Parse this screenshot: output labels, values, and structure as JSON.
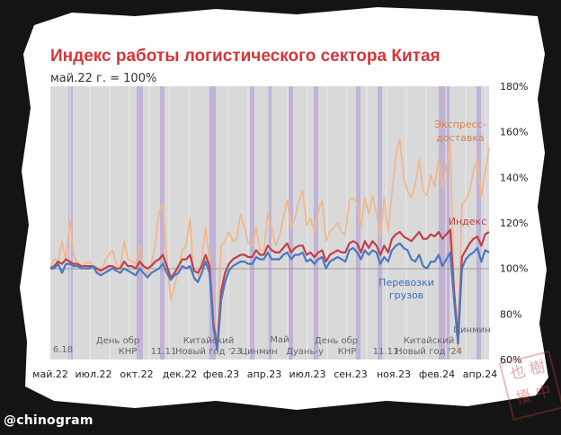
{
  "chart_data": {
    "type": "line",
    "title": "Индекс работы логистического сектора Китая",
    "subtitle": "май.22 г. = 100%",
    "x_ticks": [
      "май.22",
      "июл.22",
      "окт.22",
      "дек.22",
      "фев.23",
      "апр.23",
      "июл.23",
      "сен.23",
      "ноя.23",
      "фев.24",
      "апр.24"
    ],
    "y_ticks": [
      "60%",
      "80%",
      "100%",
      "120%",
      "140%",
      "160%",
      "180%"
    ],
    "ylim": [
      60,
      180
    ],
    "grid": true,
    "series": [
      {
        "name": "Экспресс-доставка",
        "label": "Экспресс-доставка",
        "color": "#f0b88e",
        "values": [
          100,
          104,
          103,
          112,
          104,
          121,
          106,
          102,
          101,
          102,
          103,
          101,
          99,
          98,
          103,
          106,
          108,
          102,
          100,
          112,
          104,
          103,
          102,
          110,
          101,
          97,
          102,
          110,
          125,
          128,
          104,
          86,
          92,
          100,
          108,
          110,
          122,
          95,
          94,
          104,
          118,
          104,
          78,
          68,
          110,
          112,
          116,
          112,
          113,
          124,
          118,
          111,
          110,
          118,
          108,
          108,
          124,
          118,
          110,
          114,
          122,
          130,
          118,
          122,
          130,
          134,
          119,
          122,
          116,
          125,
          130,
          112,
          116,
          118,
          120,
          116,
          115,
          130,
          131,
          129,
          118,
          131,
          124,
          132,
          124,
          114,
          131,
          116,
          133,
          150,
          157,
          140,
          134,
          131,
          137,
          148,
          134,
          132,
          141,
          136,
          148,
          135,
          145,
          155,
          88,
          64,
          128,
          130,
          134,
          143,
          148,
          132,
          142,
          153
        ]
      },
      {
        "name": "Индекс",
        "label": "Индекс",
        "color": "#c0404a",
        "values": [
          100,
          101,
          103,
          102,
          104,
          103,
          102,
          102,
          101,
          101,
          101,
          101,
          100,
          99,
          100,
          101,
          101,
          100,
          100,
          103,
          101,
          101,
          100,
          103,
          101,
          100,
          101,
          103,
          104,
          106,
          101,
          96,
          98,
          101,
          104,
          104,
          106,
          99,
          98,
          101,
          106,
          101,
          76,
          65,
          90,
          98,
          102,
          104,
          105,
          106,
          106,
          105,
          105,
          108,
          106,
          106,
          110,
          108,
          107,
          107,
          109,
          111,
          107,
          109,
          110,
          110,
          106,
          107,
          105,
          107,
          108,
          103,
          106,
          107,
          108,
          107,
          107,
          111,
          112,
          111,
          107,
          112,
          109,
          112,
          110,
          106,
          110,
          107,
          113,
          115,
          116,
          114,
          113,
          112,
          114,
          116,
          113,
          113,
          115,
          114,
          116,
          113,
          115,
          117,
          90,
          69,
          105,
          108,
          111,
          113,
          114,
          110,
          115,
          116
        ]
      },
      {
        "name": "Перевозки грузов",
        "label": "Перевозки грузов",
        "color": "#4a78c2",
        "values": [
          100,
          100,
          102,
          98,
          102,
          102,
          101,
          101,
          100,
          100,
          100,
          101,
          98,
          97,
          98,
          99,
          100,
          99,
          98,
          100,
          99,
          98,
          97,
          100,
          98,
          96,
          98,
          99,
          100,
          102,
          98,
          95,
          97,
          98,
          101,
          100,
          101,
          96,
          94,
          98,
          103,
          98,
          74,
          64,
          86,
          94,
          99,
          101,
          102,
          103,
          103,
          102,
          102,
          105,
          104,
          104,
          107,
          104,
          104,
          104,
          106,
          107,
          104,
          106,
          106,
          107,
          103,
          104,
          102,
          104,
          105,
          100,
          103,
          104,
          105,
          104,
          103,
          108,
          109,
          107,
          104,
          108,
          106,
          108,
          107,
          102,
          105,
          103,
          108,
          110,
          111,
          109,
          108,
          104,
          103,
          106,
          101,
          100,
          103,
          103,
          106,
          101,
          104,
          107,
          86,
          67,
          100,
          104,
          106,
          107,
          109,
          103,
          108,
          107
        ]
      }
    ],
    "annotations": [
      "6.18",
      "День обр КНР",
      "11.11",
      "Китайский Новый год '23",
      "Цинмин",
      "Май",
      "Дуань-у",
      "День обр КНР",
      "11.11",
      "Китайский Новый год '24",
      "Цинмин"
    ]
  },
  "labels": {
    "express": [
      "Экспресс-",
      "доставка"
    ],
    "index": "Индекс",
    "freight": [
      "Перевозки",
      "грузов"
    ]
  },
  "annotations": {
    "a618": "6.18",
    "nd1": [
      "День обр",
      "КНР"
    ],
    "s1111a": "11.11",
    "cny23": [
      "Китайский",
      "Новый год '23"
    ],
    "qm23": "Цинмин",
    "may": [
      "Май",
      "Дуань-у"
    ],
    "nd2": [
      "День обр",
      "КНР"
    ],
    "s1111b": "11.11",
    "cny24": [
      "Китайский",
      "Новый год '24"
    ],
    "qm24": "Цинмин"
  },
  "watermark": "@chinogram",
  "stamp": [
    "也",
    "樹",
    "擾",
    "中"
  ]
}
